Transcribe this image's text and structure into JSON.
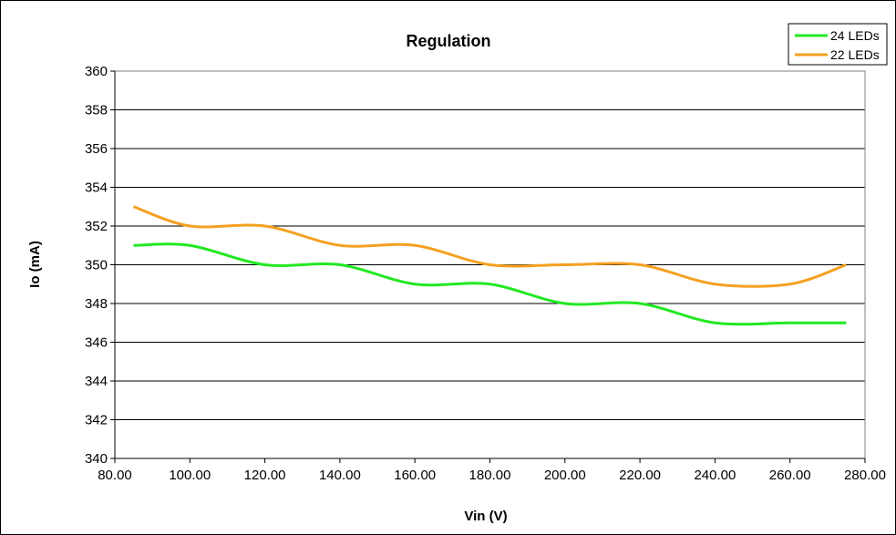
{
  "chart_data": {
    "type": "line",
    "title": "Regulation",
    "xlabel": "Vin (V)",
    "ylabel": "Io (mA)",
    "xlim": [
      80,
      280
    ],
    "ylim": [
      340,
      360
    ],
    "x_ticks": [
      "80.00",
      "100.00",
      "120.00",
      "140.00",
      "160.00",
      "180.00",
      "200.00",
      "220.00",
      "240.00",
      "260.00",
      "280.00"
    ],
    "y_ticks": [
      "340",
      "342",
      "344",
      "346",
      "348",
      "350",
      "352",
      "354",
      "356",
      "358",
      "360"
    ],
    "x_tick_values": [
      80,
      100,
      120,
      140,
      160,
      180,
      200,
      220,
      240,
      260,
      280
    ],
    "y_tick_values": [
      340,
      342,
      344,
      346,
      348,
      350,
      352,
      354,
      356,
      358,
      360
    ],
    "grid": "horizontal major",
    "legend_position": "top-right",
    "x": [
      85,
      100,
      120,
      140,
      160,
      180,
      200,
      220,
      240,
      260,
      275
    ],
    "series": [
      {
        "name": "24 LEDs",
        "color": "#22e822",
        "values": [
          351,
          351,
          350,
          350,
          349,
          349,
          348,
          348,
          347,
          347,
          347
        ]
      },
      {
        "name": "22 LEDs",
        "color": "#f5a020",
        "values": [
          353,
          352,
          352,
          351,
          351,
          350,
          350,
          350,
          349,
          349,
          350
        ]
      }
    ]
  }
}
